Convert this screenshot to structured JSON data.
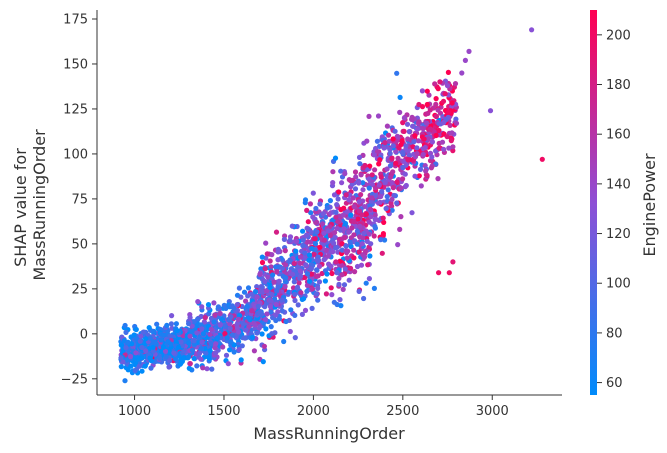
{
  "chart_data": {
    "type": "scatter",
    "xlabel": "MassRunningOrder",
    "ylabel_lines": [
      "SHAP value for",
      "MassRunningOrder"
    ],
    "xlim": [
      790,
      3390
    ],
    "ylim": [
      -34,
      180
    ],
    "xticks": [
      1000,
      1500,
      2000,
      2500,
      3000
    ],
    "yticks": [
      -25,
      0,
      25,
      50,
      75,
      100,
      125,
      150,
      175
    ],
    "colorbar": {
      "label": "EnginePower",
      "range": [
        55,
        210
      ],
      "ticks": [
        60,
        80,
        100,
        120,
        140,
        160,
        180,
        200
      ],
      "color_low": "#008bfb",
      "color_mid": "#8e4fd5",
      "color_high": "#ff0052"
    },
    "trend": {
      "description": "dense point cloud; SHAP value rises with MassRunningOrder",
      "x": [
        900,
        1000,
        1100,
        1200,
        1300,
        1400,
        1500,
        1600,
        1700,
        1800,
        1900,
        2000,
        2100,
        2200,
        2300,
        2400,
        2500,
        2600,
        2700,
        2800
      ],
      "y": [
        -12,
        -9,
        -7,
        -5,
        -3,
        -2,
        1,
        5,
        14,
        27,
        37,
        45,
        52,
        58,
        67,
        88,
        100,
        110,
        116,
        124
      ]
    },
    "outliers": [
      {
        "x": 3220,
        "y": 169,
        "power": 130
      },
      {
        "x": 3280,
        "y": 97,
        "power": 200
      },
      {
        "x": 2990,
        "y": 124,
        "power": 130
      },
      {
        "x": 2870,
        "y": 157,
        "power": 140
      },
      {
        "x": 2850,
        "y": 152,
        "power": 140
      },
      {
        "x": 2830,
        "y": 145,
        "power": 140
      },
      {
        "x": 2750,
        "y": 138,
        "power": 135
      },
      {
        "x": 2800,
        "y": 117,
        "power": 150
      },
      {
        "x": 2760,
        "y": 34,
        "power": 200
      },
      {
        "x": 2700,
        "y": 34,
        "power": 200
      },
      {
        "x": 2780,
        "y": 40,
        "power": 190
      }
    ],
    "colors": {
      "axis": "#333333",
      "text": "#333333"
    }
  }
}
